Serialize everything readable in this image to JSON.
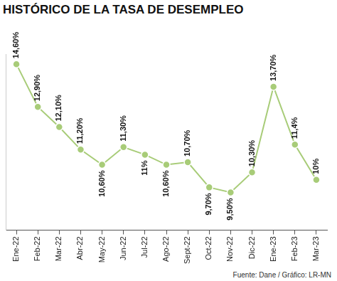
{
  "chart_data": {
    "type": "line",
    "title": "HISTÓRICO DE LA TASA DE DESEMPLEO",
    "annotations": [
      "Fuente: Dane / Gráfico: LR-MN"
    ],
    "categories": [
      "Ene-22",
      "Feb-22",
      "Mar-22",
      "Abr-22",
      "May-22",
      "Jun-22",
      "Jul-22",
      "Ago-22",
      "Sept-22",
      "Oct-22",
      "Nov-22",
      "Dic-22",
      "Ene-23",
      "Feb-23",
      "Mar-23"
    ],
    "values": [
      14.6,
      12.9,
      12.1,
      11.2,
      10.6,
      11.3,
      11,
      10.6,
      10.7,
      9.7,
      9.5,
      10.3,
      13.7,
      11.4,
      10
    ],
    "value_labels": [
      "14,60%",
      "12,90%",
      "12,10%",
      "11,20%",
      "10,60%",
      "11,30%",
      "11%",
      "10,60%",
      "10,70%",
      "9,70%",
      "9,50%",
      "10,30%",
      "13,70%",
      "11,4%",
      "10%"
    ],
    "color": "#a8cc78",
    "ylim": [
      8,
      15
    ],
    "grid": false,
    "data_labels": true,
    "tick_labels": "x",
    "marker": "circle",
    "line_style": "solid"
  }
}
